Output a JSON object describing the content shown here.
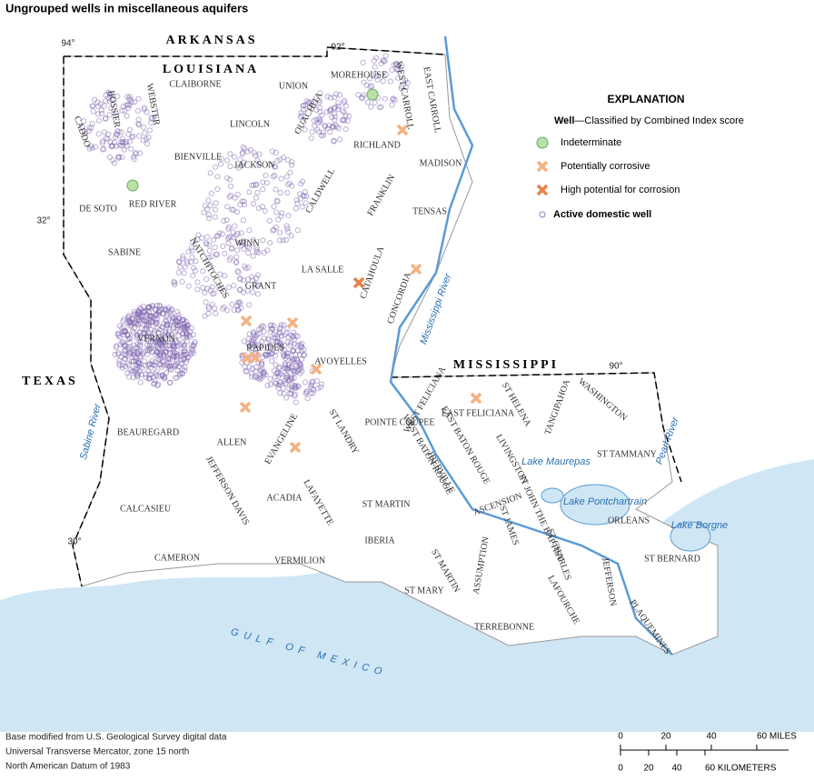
{
  "title": "Ungrouped wells in miscellaneous aquifers",
  "explanation": {
    "heading": "EXPLANATION",
    "subheading_bold": "Well",
    "subheading": "—Classified by Combined Index score",
    "items": [
      "Indeterminate",
      "Potentially corrosive",
      "High potential for corrosion",
      "Active domestic well"
    ]
  },
  "states": [
    "ARKANSAS",
    "LOUISIANA",
    "MISSISSIPPI",
    "TEXAS"
  ],
  "water": [
    "GULF OF MEXICO",
    "Mississippi River",
    "Sabine River",
    "Pearl River",
    "Lake Maurepas",
    "Lake Pontchartrain",
    "Lake Borgne"
  ],
  "coordinates": [
    "94°",
    "92°",
    "90°",
    "32°",
    "30°"
  ],
  "parishes": [
    "CADDO",
    "BOSSIER",
    "WEBSTER",
    "CLAIBORNE",
    "UNION",
    "MOREHOUSE",
    "WEST CARROLL",
    "EAST CARROLL",
    "LINCOLN",
    "OUACHITA",
    "RICHLAND",
    "MADISON",
    "BIENVILLE",
    "JACKSON",
    "DE SOTO",
    "RED RIVER",
    "CALDWELL",
    "FRANKLIN",
    "TENSAS",
    "WINN",
    "NATCHITOCHES",
    "SABINE",
    "GRANT",
    "LA SALLE",
    "CATAHOULA",
    "CONCORDIA",
    "RAPIDES",
    "AVOYELLES",
    "VERNON",
    "BEAUREGARD",
    "ALLEN",
    "EVANGELINE",
    "ST LANDRY",
    "POINTE COUPEE",
    "WEST FELICIANA",
    "EAST FELICIANA",
    "ST HELENA",
    "TANGIPAHOA",
    "WASHINGTON",
    "ST TAMMANY",
    "LIVINGSTON",
    "EAST BATON ROUGE",
    "WEST BATON ROUGE",
    "IBERVILLE",
    "ASCENSION",
    "ST JAMES",
    "ST JOHN THE BAPTIST",
    "ST CHARLES",
    "ORLEANS",
    "ST BERNARD",
    "JEFFERSON",
    "PLAQUEMINES",
    "LAFOURCHE",
    "TERREBONNE",
    "ST MARY",
    "ASSUMPTION",
    "ST MARTIN",
    "IBERIA",
    "ST MARTIN",
    "LAFAYETTE",
    "VERMILION",
    "CAMERON",
    "CALCASIEU",
    "JEFFERSON DAVIS",
    "ACADIA"
  ],
  "source": [
    "Base modified from U.S. Geological Survey digital data",
    "Universal Transverse Mercator, zone 15 north",
    "North American Datum of 1983"
  ],
  "scale": {
    "miles": [
      "0",
      "20",
      "40",
      "60 MILES"
    ],
    "kilometers": [
      "0",
      "20",
      "40",
      "60 KILOMETERS"
    ]
  }
}
